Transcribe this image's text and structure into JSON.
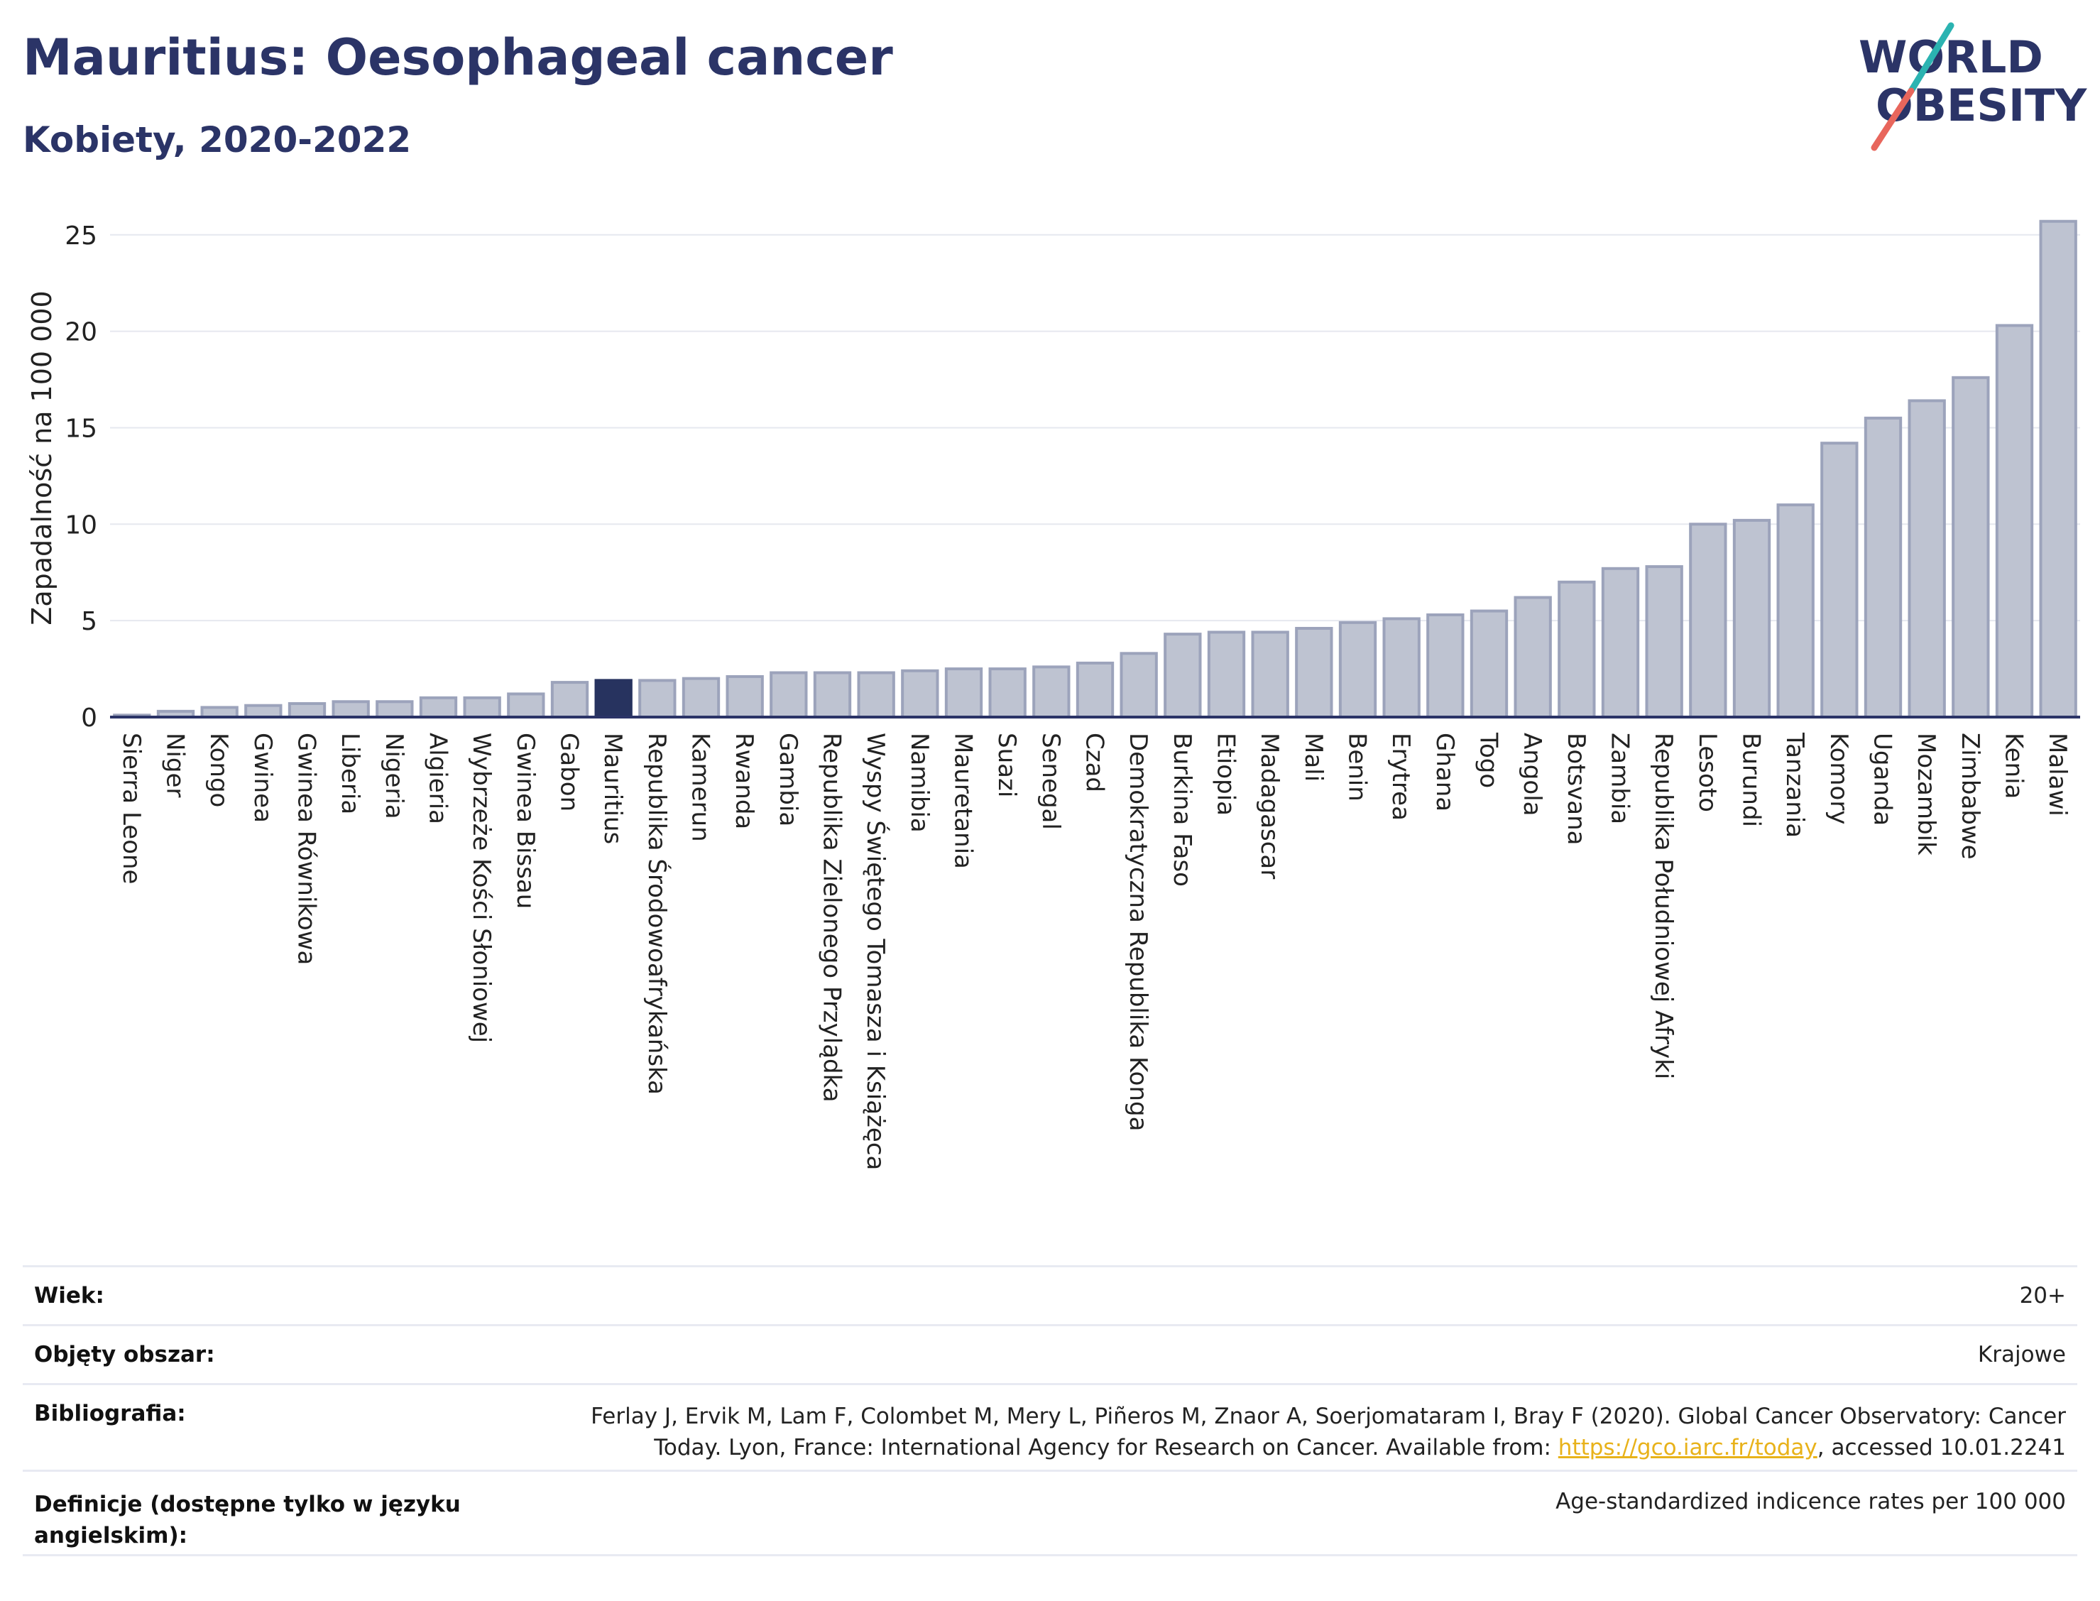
{
  "header": {
    "title": "Mauritius: Oesophageal cancer",
    "subtitle": "Kobiety, 2020-2022"
  },
  "logo": {
    "line1": "WORLD",
    "line2": "OBESITY"
  },
  "chart_data": {
    "type": "bar",
    "ylabel": "Zapadalność na 100 000",
    "ylim": [
      0,
      26.5
    ],
    "yticks": [
      0,
      5,
      10,
      15,
      20,
      25
    ],
    "grid": true,
    "highlight": "Mauritius",
    "colors": {
      "bar": "#bec3d1",
      "bar_stroke": "#9ca3bb",
      "highlight": "#27335f",
      "grid": "#e6e8ef",
      "axis": "#2b3467"
    },
    "categories": [
      "Sierra Leone",
      "Niger",
      "Kongo",
      "Gwinea",
      "Gwinea Równikowa",
      "Liberia",
      "Nigeria",
      "Algieria",
      "Wybrzeże Kości Słoniowej",
      "Gwinea Bissau",
      "Gabon",
      "Mauritius",
      "Republika Środowoafrykańska",
      "Kamerun",
      "Rwanda",
      "Gambia",
      "Republika Zielonego Przylądka",
      "Wyspy Świętego Tomasza i Książęca",
      "Namibia",
      "Mauretania",
      "Suazi",
      "Senegal",
      "Czad",
      "Demokratyczna Republika Konga",
      "Burkina Faso",
      "Etiopia",
      "Madagascar",
      "Mali",
      "Benin",
      "Erytrea",
      "Ghana",
      "Togo",
      "Angola",
      "Botsvana",
      "Zambia",
      "Republika Południowej Afryki",
      "Lesoto",
      "Burundi",
      "Tanzania",
      "Komory",
      "Uganda",
      "Mozambik",
      "Zimbabwe",
      "Kenia",
      "Malawi"
    ],
    "values": [
      0.1,
      0.3,
      0.5,
      0.6,
      0.7,
      0.8,
      0.8,
      1.0,
      1.0,
      1.2,
      1.8,
      1.9,
      1.9,
      2.0,
      2.1,
      2.3,
      2.3,
      2.3,
      2.4,
      2.5,
      2.5,
      2.6,
      2.8,
      3.3,
      4.3,
      4.4,
      4.4,
      4.6,
      4.9,
      5.1,
      5.3,
      5.5,
      6.2,
      7.0,
      7.7,
      7.8,
      10.0,
      10.2,
      11.0,
      14.2,
      15.5,
      16.4,
      17.6,
      20.3,
      25.7
    ]
  },
  "meta": {
    "rows": [
      {
        "key": "Wiek:",
        "value": "20+"
      },
      {
        "key": "Objęty obszar:",
        "value": "Krajowe"
      },
      {
        "key": "Bibliografia:",
        "value_line1": "Ferlay J, Ervik M, Lam F, Colombet M, Mery L, Piñeros M, Znaor A, Soerjomataram I, Bray F (2020). Global Cancer Observatory: Cancer",
        "value_line2_pre": "Today. Lyon, France: International Agency for Research on Cancer. Available from: ",
        "link": "https://gco.iarc.fr/today",
        "value_line2_post": ", accessed 10.01.2241"
      },
      {
        "key_line1": "Definicje (dostępne tylko w języku",
        "key_line2": "angielskim):",
        "value": "Age-standardized indicence rates per 100 000"
      }
    ]
  }
}
